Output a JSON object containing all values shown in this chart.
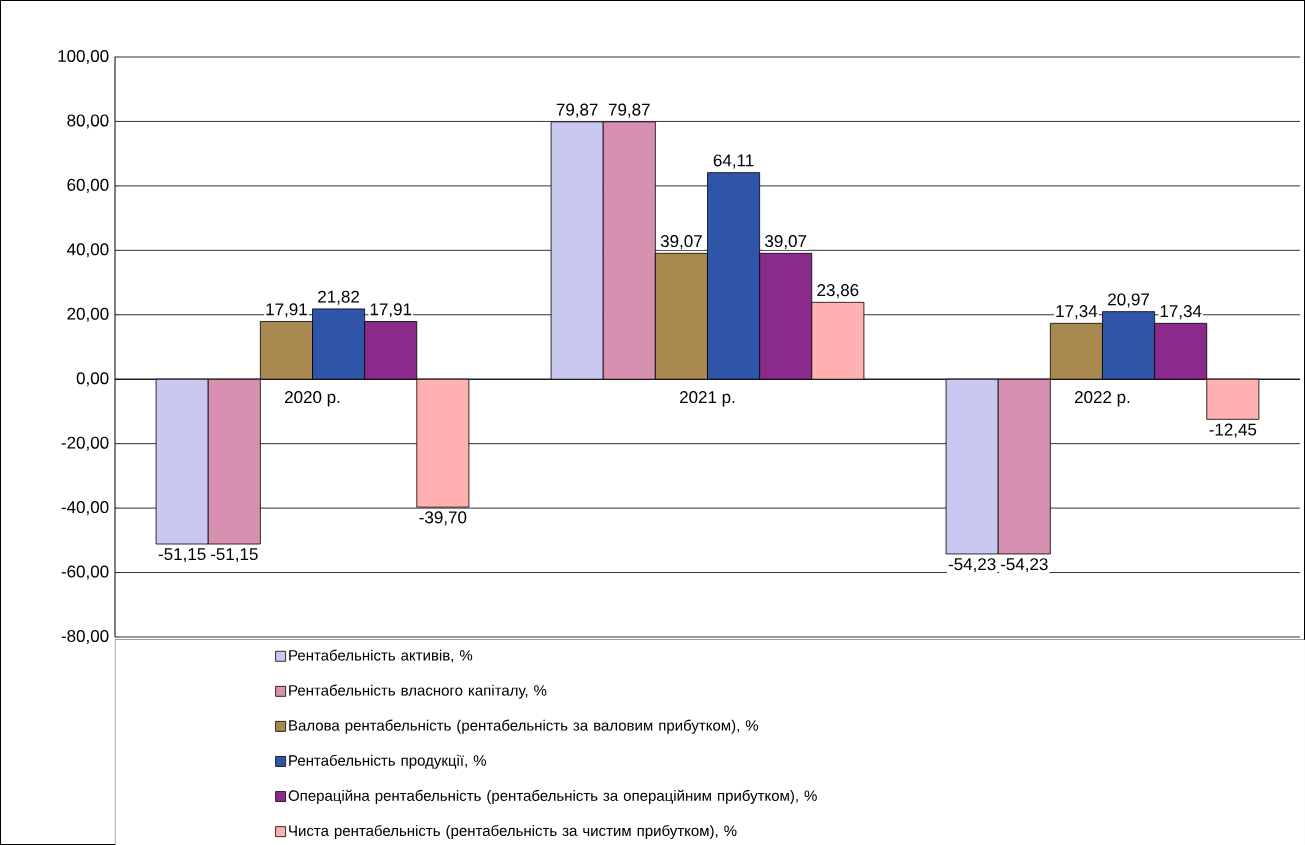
{
  "chart_data": {
    "type": "bar",
    "categories": [
      "2020 р.",
      "2021 р.",
      "2022 р."
    ],
    "series": [
      {
        "name": "Рентабельність активів, %",
        "color": "#c8c8f0",
        "values": [
          -51.15,
          79.87,
          -54.23
        ],
        "value_labels": [
          "-51,15",
          "79,87",
          "-54,23"
        ]
      },
      {
        "name": "Рентабельність власного капіталу, %",
        "color": "#d890b0",
        "values": [
          -51.15,
          79.87,
          -54.23
        ],
        "value_labels": [
          "-51,15",
          "79,87",
          "-54,23"
        ]
      },
      {
        "name": "Валова рентабельність (рентабельність за валовим прибутком), %",
        "color": "#a8884f",
        "values": [
          17.91,
          39.07,
          17.34
        ],
        "value_labels": [
          "17,91",
          "39,07",
          "17,34"
        ]
      },
      {
        "name": "Рентабельність продукції, %",
        "color": "#2f55a8",
        "values": [
          21.82,
          64.11,
          20.97
        ],
        "value_labels": [
          "21,82",
          "64,11",
          "20,97"
        ]
      },
      {
        "name": "Операційна рентабельність (рентабельність за операційним прибутком), %",
        "color": "#8a2a8a",
        "values": [
          17.91,
          39.07,
          17.34
        ],
        "value_labels": [
          "17,91",
          "39,07",
          "17,34"
        ]
      },
      {
        "name": "Чиста рентабельність (рентабельність за чистим прибутком), %",
        "color": "#ffb0b0",
        "values": [
          -39.7,
          23.86,
          -12.45
        ],
        "value_labels": [
          "-39,70",
          "23,86",
          "-12,45"
        ]
      }
    ],
    "ylim": [
      -80,
      100
    ],
    "yticks": [
      {
        "value": -80,
        "label": "-80,00"
      },
      {
        "value": -60,
        "label": "-60,00"
      },
      {
        "value": -40,
        "label": "-40,00"
      },
      {
        "value": -20,
        "label": "-20,00"
      },
      {
        "value": 0,
        "label": "0,00"
      },
      {
        "value": 20,
        "label": "20,00"
      },
      {
        "value": 40,
        "label": "40,00"
      },
      {
        "value": 60,
        "label": "60,00"
      },
      {
        "value": 80,
        "label": "80,00"
      },
      {
        "value": 100,
        "label": "100,00"
      }
    ],
    "grid": "y",
    "legend": "bottom"
  }
}
